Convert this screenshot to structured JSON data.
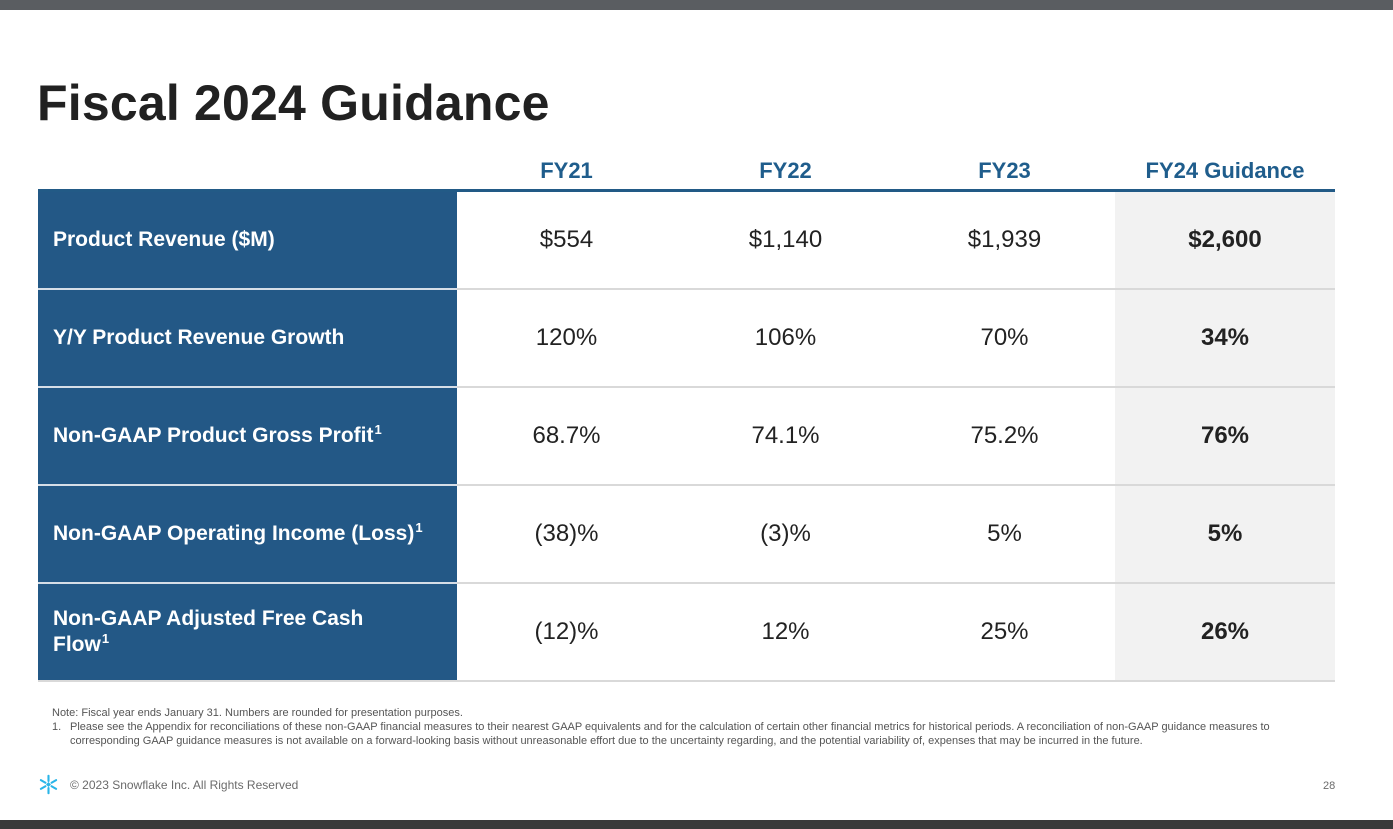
{
  "slide": {
    "title": "Fiscal 2024 Guidance",
    "columns": [
      "FY21",
      "FY22",
      "FY23",
      "FY24 Guidance"
    ],
    "rows": [
      {
        "label": "Product Revenue ($M)",
        "sup": "",
        "values": [
          "$554",
          "$1,140",
          "$1,939",
          "$2,600"
        ]
      },
      {
        "label": "Y/Y Product Revenue Growth",
        "sup": "",
        "values": [
          "120%",
          "106%",
          "70%",
          "34%"
        ]
      },
      {
        "label": "Non-GAAP Product Gross Profit",
        "sup": "1",
        "values": [
          "68.7%",
          "74.1%",
          "75.2%",
          "76%"
        ]
      },
      {
        "label": "Non-GAAP Operating Income (Loss)",
        "sup": "1",
        "values": [
          "(38)%",
          "(3)%",
          "5%",
          "5%"
        ]
      },
      {
        "label": "Non-GAAP Adjusted Free Cash Flow",
        "sup": "1",
        "values": [
          "(12)%",
          "12%",
          "25%",
          "26%"
        ]
      }
    ],
    "note": "Note: Fiscal year ends January 31. Numbers are rounded for presentation purposes.",
    "footnote_number": "1.",
    "footnote": "Please see the Appendix for reconciliations of these non-GAAP financial measures to their nearest GAAP equivalents and for the calculation of certain other financial metrics for historical periods. A reconciliation of non-GAAP guidance measures to corresponding GAAP guidance measures is not available on a forward-looking basis without unreasonable effort due to the uncertainty regarding, and the potential variability of, expenses that may be incurred in the future.",
    "copyright": "© 2023 Snowflake Inc. All Rights Reserved",
    "page_number": "28",
    "logo_icon": "snowflake-icon",
    "colors": {
      "header_text": "#1f5d8c",
      "row_label_bg": "#235886",
      "guidance_bg": "#f2f2f2",
      "logo": "#29b5e8"
    }
  }
}
